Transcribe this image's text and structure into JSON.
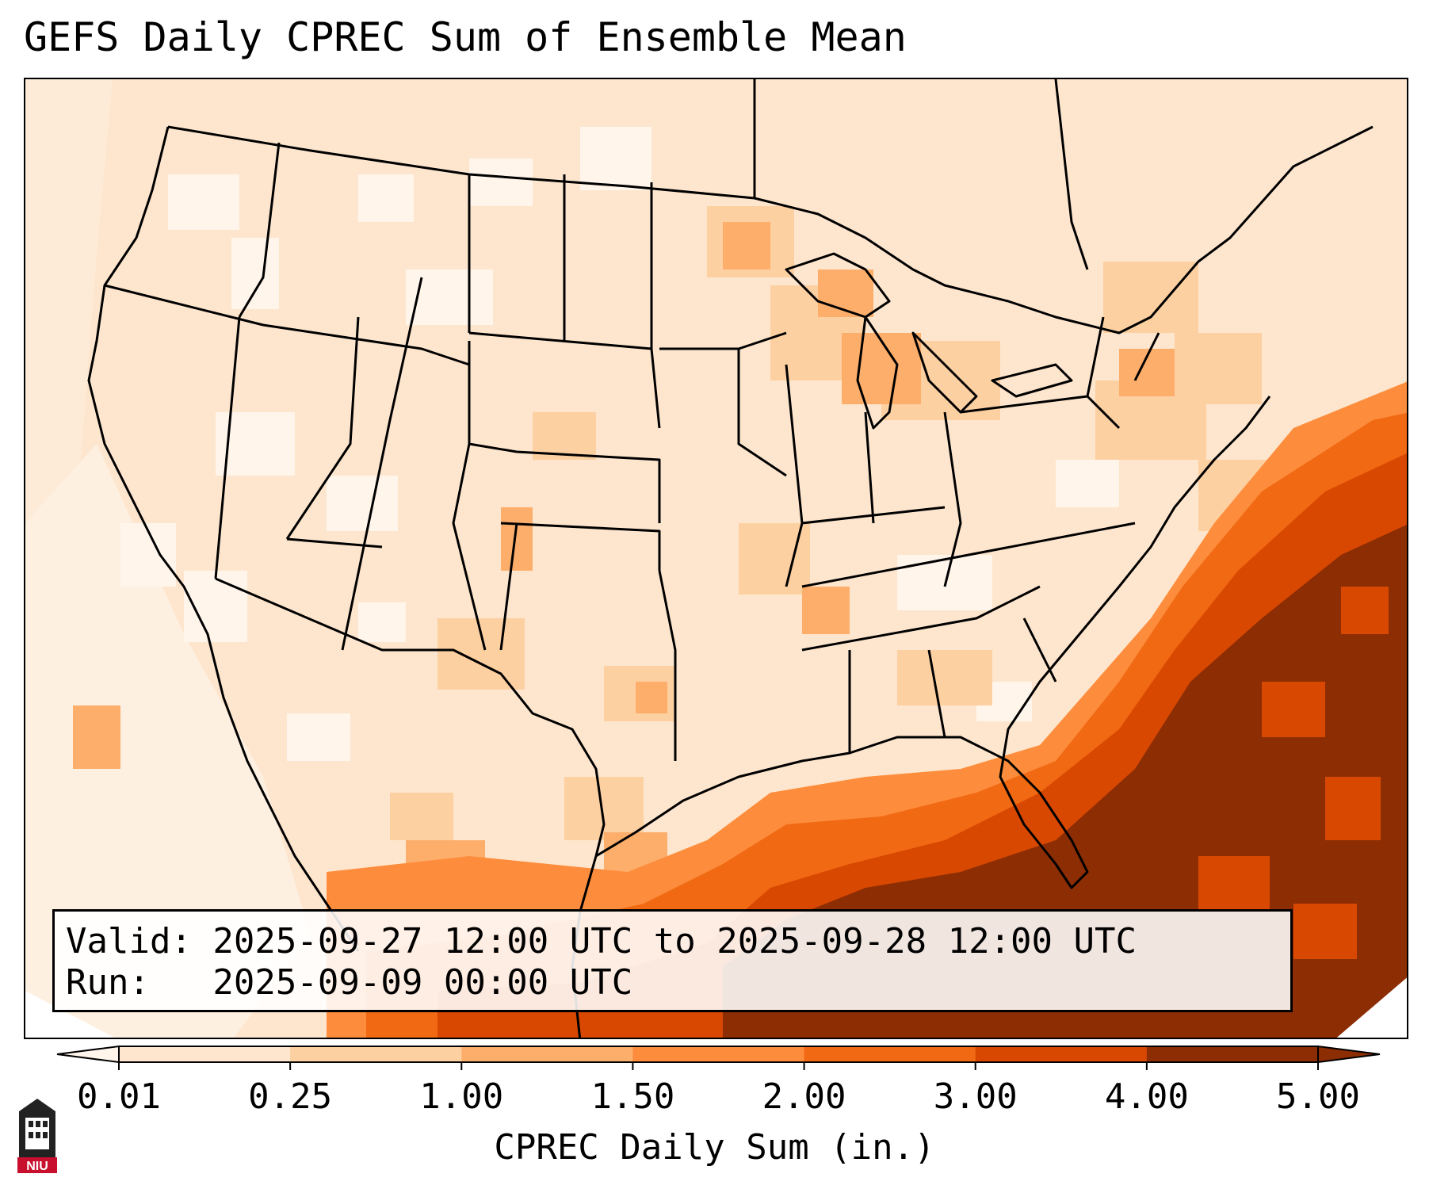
{
  "title": "GEFS Daily CPREC Sum of Ensemble Mean",
  "info": {
    "valid_line": "Valid: 2025-09-27 12:00 UTC to 2025-09-28 12:00 UTC",
    "run_line": "Run:   2025-09-09 00:00 UTC"
  },
  "colorbar": {
    "label": "CPREC Daily Sum (in.)",
    "ticks": [
      "0.01",
      "0.25",
      "1.00",
      "1.50",
      "2.00",
      "3.00",
      "4.00",
      "5.00"
    ],
    "colors": [
      "#fff5eb",
      "#fee6ce",
      "#fdd0a2",
      "#fdae6b",
      "#fd8d3c",
      "#f16913",
      "#d94801",
      "#8c2d04"
    ],
    "extend": "both"
  },
  "logo": {
    "text": "NIU",
    "color": "#c8102e"
  },
  "colors": {
    "low": "#fff5eb",
    "light": "#fee6ce",
    "tan": "#fdd0a2",
    "mid": "#fdae6b",
    "orange": "#fd8d3c",
    "dark_orange": "#f16913",
    "burnt": "#d94801",
    "max": "#8c2d04"
  }
}
